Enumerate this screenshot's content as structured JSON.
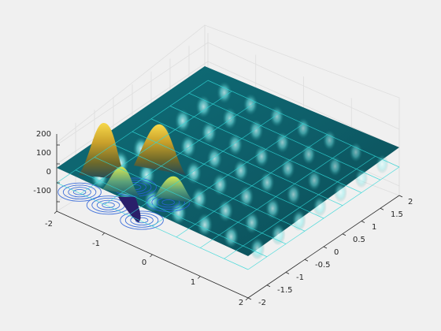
{
  "chart_data": {
    "type": "surface",
    "title": "",
    "xlabel": "",
    "ylabel": "",
    "zlabel": "",
    "xlim": [
      -2,
      2
    ],
    "ylim": [
      -2,
      2
    ],
    "zlim": [
      -150,
      200
    ],
    "x_ticks": [
      -2,
      -1,
      0,
      1,
      2
    ],
    "y_ticks": [
      -2,
      -1.5,
      -1,
      -0.5,
      0,
      0.5,
      1,
      1.5,
      2
    ],
    "z_ticks": [
      -100,
      0,
      100,
      200
    ],
    "x_tick_labels": [
      "-2",
      "-1",
      "0",
      "1",
      "2"
    ],
    "y_tick_labels": [
      "-2",
      "-1.5",
      "-1",
      "-0.5",
      "0",
      "0.5",
      "1",
      "1.5",
      "2"
    ],
    "z_tick_labels": [
      "-100",
      "0",
      "100",
      "200"
    ],
    "grid": true,
    "box": false,
    "surface": {
      "colormap": "parula",
      "lighting": true,
      "mesh_color": "#2fd6d6",
      "peaks": [
        {
          "x": -1.0,
          "y": -1.9,
          "z": 190
        },
        {
          "x": -1.0,
          "y": -1.2,
          "z": 190
        },
        {
          "x": -0.3,
          "y": -1.9,
          "z": 110
        },
        {
          "x": -0.3,
          "y": -1.2,
          "z": 100
        },
        {
          "x": -1.6,
          "y": -1.9,
          "z": -130
        }
      ]
    },
    "contour_plane": {
      "z": 0,
      "color": "#2b62d8"
    }
  }
}
